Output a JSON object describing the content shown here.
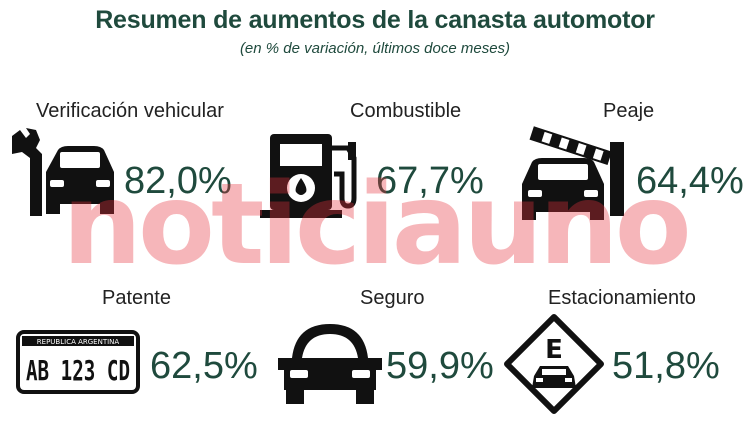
{
  "header": {
    "title": "Resumen de aumentos de la canasta automotor",
    "subtitle": "(en % de variación, últimos doce meses)"
  },
  "items": [
    {
      "label": "Verificación vehicular",
      "value": "82,0%",
      "icon": "wrench-car-icon"
    },
    {
      "label": "Combustible",
      "value": "67,7%",
      "icon": "fuel-pump-icon"
    },
    {
      "label": "Peaje",
      "value": "64,4%",
      "icon": "toll-barrier-icon"
    },
    {
      "label": "Patente",
      "value": "62,5%",
      "icon": "license-plate-icon"
    },
    {
      "label": "Seguro",
      "value": "59,9%",
      "icon": "car-icon"
    },
    {
      "label": "Estacionamiento",
      "value": "51,8%",
      "icon": "parking-sign-icon"
    }
  ],
  "plate": {
    "country": "REPUBLICA ARGENTINA",
    "number": "AB 123 CD"
  },
  "parking_sign_letter": "E",
  "watermark": "noticiauno",
  "colors": {
    "title": "#1f4a3d",
    "icon": "#111111",
    "watermark": "#e8323c"
  }
}
